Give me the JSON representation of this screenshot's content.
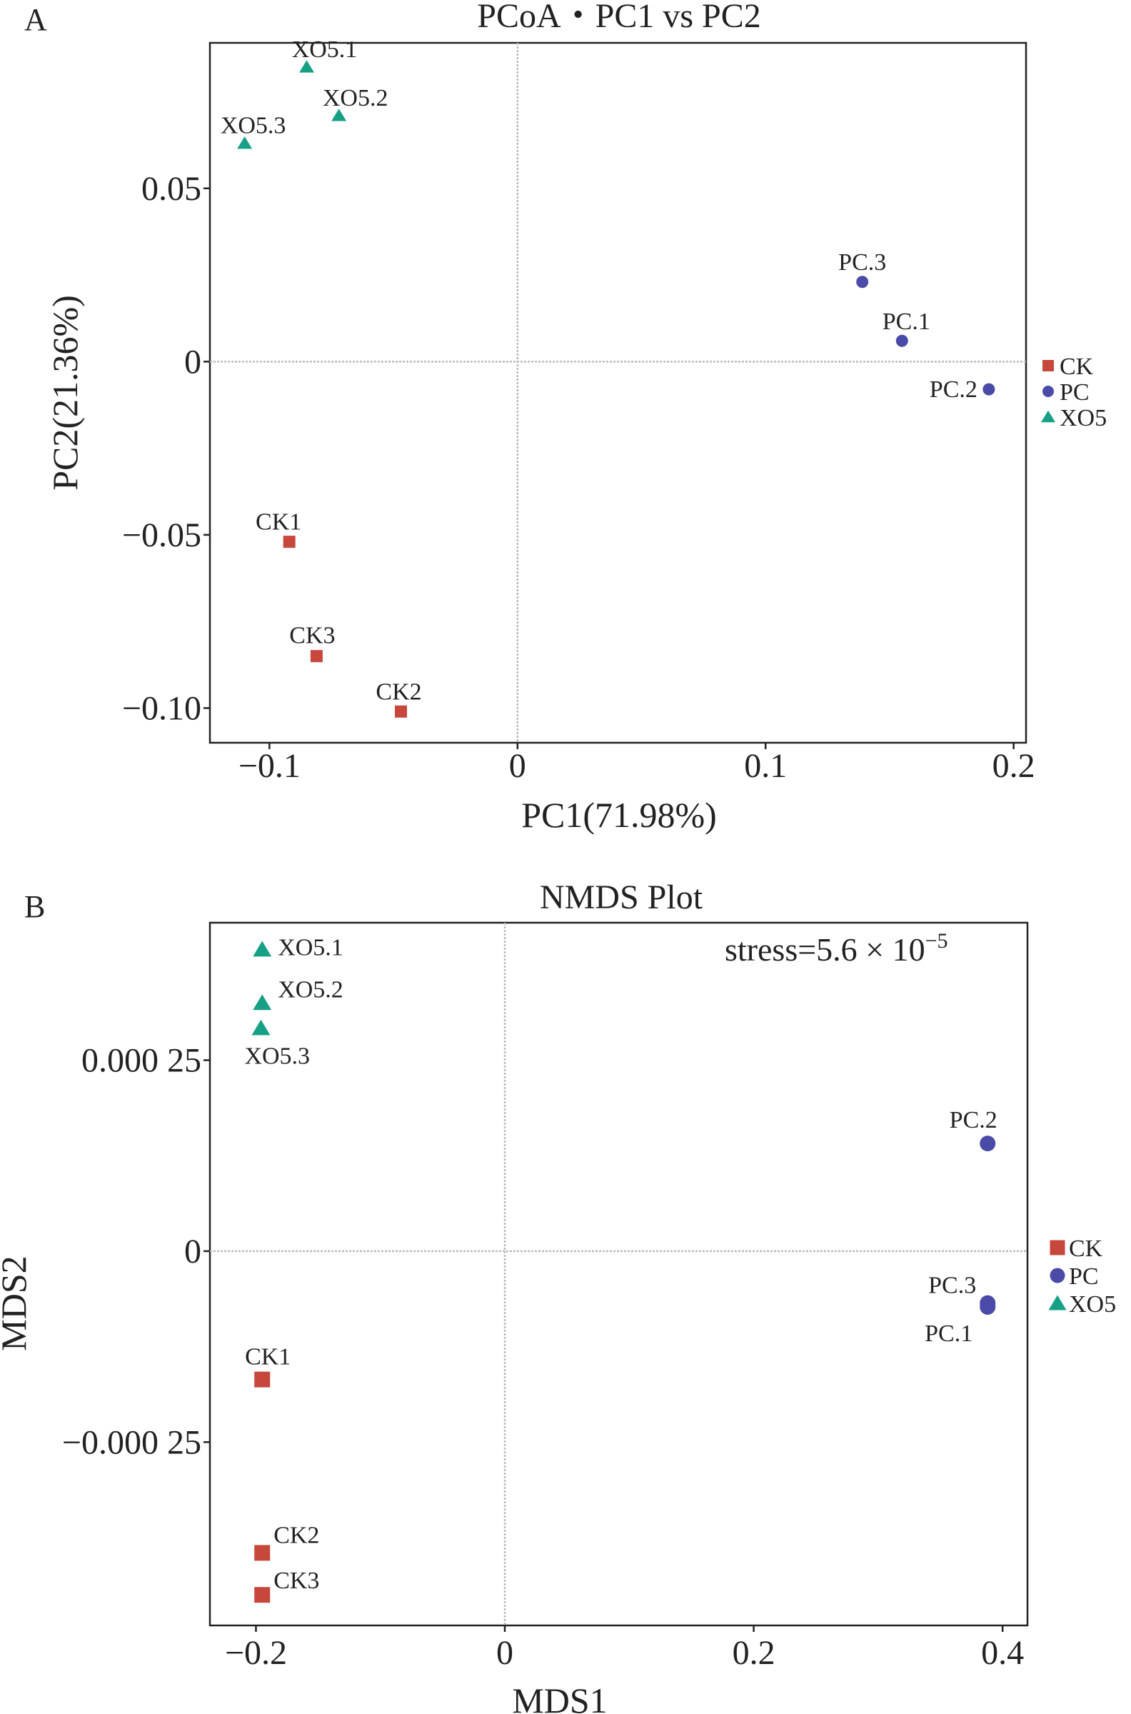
{
  "colors": {
    "CK": "#c8473d",
    "PC": "#4a4aa8",
    "XO5": "#16a085"
  },
  "chart_data": [
    {
      "panel_letter": "A",
      "type": "scatter",
      "title": "PCoA・PC1 vs PC2",
      "xlabel": "PC1(71.98%)",
      "ylabel": "PC2(21.36%)",
      "xlim": [
        -0.124,
        0.205
      ],
      "ylim": [
        -0.11,
        0.092
      ],
      "xticks": [
        -0.1,
        0,
        0.1,
        0.2
      ],
      "xtick_labels": [
        "−0.1",
        "0",
        "0.1",
        "0.2"
      ],
      "yticks": [
        -0.1,
        -0.05,
        0,
        0.05
      ],
      "ytick_labels": [
        "−0.10",
        "−0.05",
        "0",
        "0.05"
      ],
      "zero_lines": true,
      "legend": [
        "CK",
        "PC",
        "XO5"
      ],
      "legend_placement": "right",
      "series": [
        {
          "name": "CK",
          "marker": "square",
          "points": [
            {
              "label": "CK1",
              "x": -0.092,
              "y": -0.052
            },
            {
              "label": "CK3",
              "x": -0.081,
              "y": -0.085
            },
            {
              "label": "CK2",
              "x": -0.047,
              "y": -0.101
            }
          ]
        },
        {
          "name": "PC",
          "marker": "circle",
          "points": [
            {
              "label": "PC.3",
              "x": 0.139,
              "y": 0.023
            },
            {
              "label": "PC.1",
              "x": 0.155,
              "y": 0.006
            },
            {
              "label": "PC.2",
              "x": 0.19,
              "y": -0.008
            }
          ]
        },
        {
          "name": "XO5",
          "marker": "triangle",
          "points": [
            {
              "label": "XO5.1",
              "x": -0.085,
              "y": 0.085
            },
            {
              "label": "XO5.2",
              "x": -0.072,
              "y": 0.071
            },
            {
              "label": "XO5.3",
              "x": -0.11,
              "y": 0.063
            }
          ]
        }
      ]
    },
    {
      "panel_letter": "B",
      "type": "scatter",
      "title": "NMDS Plot",
      "xlabel": "MDS1",
      "ylabel": "MDS2",
      "annotation": {
        "text": "stress=5.6 × 10",
        "sup": "−5"
      },
      "xlim": [
        -0.237,
        0.42
      ],
      "ylim": [
        -0.00049,
        0.00043
      ],
      "xticks": [
        -0.2,
        0,
        0.2,
        0.4
      ],
      "xtick_labels": [
        "−0.2",
        "0",
        "0.2",
        "0.4"
      ],
      "yticks": [
        -0.00025,
        0,
        0.00025
      ],
      "ytick_labels": [
        "−0.000 25",
        "0",
        "0.000 25"
      ],
      "zero_lines": true,
      "legend": [
        "CK",
        "PC",
        "XO5"
      ],
      "legend_placement": "right",
      "series": [
        {
          "name": "CK",
          "marker": "square",
          "points": [
            {
              "label": "CK1",
              "x": -0.195,
              "y": -0.000168
            },
            {
              "label": "CK2",
              "x": -0.195,
              "y": -0.000395
            },
            {
              "label": "CK3",
              "x": -0.195,
              "y": -0.00045
            }
          ]
        },
        {
          "name": "PC",
          "marker": "circle",
          "points": [
            {
              "label": "PC.2",
              "x": 0.388,
              "y": 0.000141
            },
            {
              "label": "PC.3",
              "x": 0.388,
              "y": -6.8e-05
            },
            {
              "label": "PC.1",
              "x": 0.388,
              "y": -7.3e-05
            }
          ]
        },
        {
          "name": "XO5",
          "marker": "triangle",
          "points": [
            {
              "label": "XO5.1",
              "x": -0.195,
              "y": 0.000395
            },
            {
              "label": "XO5.2",
              "x": -0.195,
              "y": 0.000325
            },
            {
              "label": "XO5.3",
              "x": -0.196,
              "y": 0.000292
            }
          ]
        }
      ]
    }
  ]
}
